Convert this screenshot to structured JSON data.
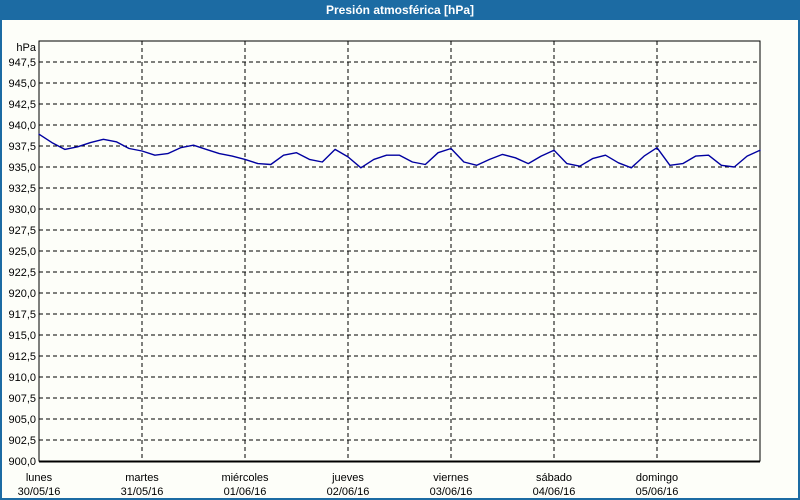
{
  "window": {
    "title": "Presión atmosférica [hPa]"
  },
  "colors": {
    "titlebar": "#1C6BA3",
    "border": "#1C6BA3",
    "background": "#FDFEF9",
    "grid": "#000000",
    "plot_border": "#000000",
    "axis_text": "#000000",
    "title_text": "#FFFFFF",
    "line": "#0000A0"
  },
  "chart_data": {
    "type": "line",
    "title": "Presión atmosférica [hPa]",
    "ylabel": "hPa",
    "xlabel": "",
    "ylim": [
      900,
      950
    ],
    "y_tick_step": 2.5,
    "grid": "dashed",
    "legend": "none",
    "x_range_days": 7,
    "interval_hours": 3,
    "y_ticks": [
      {
        "value": 947.5,
        "label": "947,5"
      },
      {
        "value": 945.0,
        "label": "945,0"
      },
      {
        "value": 942.5,
        "label": "942,5"
      },
      {
        "value": 940.0,
        "label": "940,0"
      },
      {
        "value": 937.5,
        "label": "937,5"
      },
      {
        "value": 935.0,
        "label": "935,0"
      },
      {
        "value": 932.5,
        "label": "932,5"
      },
      {
        "value": 930.0,
        "label": "930,0"
      },
      {
        "value": 927.5,
        "label": "927,5"
      },
      {
        "value": 925.0,
        "label": "925,0"
      },
      {
        "value": 922.5,
        "label": "922,5"
      },
      {
        "value": 920.0,
        "label": "920,0"
      },
      {
        "value": 917.5,
        "label": "917,5"
      },
      {
        "value": 915.0,
        "label": "915,0"
      },
      {
        "value": 912.5,
        "label": "912,5"
      },
      {
        "value": 910.0,
        "label": "910,0"
      },
      {
        "value": 907.5,
        "label": "907,5"
      },
      {
        "value": 905.0,
        "label": "905,0"
      },
      {
        "value": 902.5,
        "label": "902,5"
      },
      {
        "value": 900.0,
        "label": "900,0"
      }
    ],
    "x_categories": [
      {
        "day": "lunes",
        "date": "30/05/16"
      },
      {
        "day": "martes",
        "date": "31/05/16"
      },
      {
        "day": "miércoles",
        "date": "01/06/16"
      },
      {
        "day": "jueves",
        "date": "02/06/16"
      },
      {
        "day": "viernes",
        "date": "03/06/16"
      },
      {
        "day": "sábado",
        "date": "04/06/16"
      },
      {
        "day": "domingo",
        "date": "05/06/16"
      }
    ],
    "series": [
      {
        "name": "Presión atmosférica",
        "color": "#0000A0",
        "values": [
          938.9,
          937.9,
          937.1,
          937.4,
          937.9,
          938.3,
          938.0,
          937.2,
          936.9,
          936.4,
          936.6,
          937.3,
          937.6,
          937.1,
          936.6,
          936.3,
          935.9,
          935.4,
          935.3,
          936.4,
          936.7,
          935.9,
          935.6,
          937.1,
          936.2,
          934.9,
          935.9,
          936.4,
          936.4,
          935.6,
          935.3,
          936.7,
          937.2,
          935.6,
          935.2,
          935.9,
          936.5,
          936.1,
          935.4,
          936.3,
          937.0,
          935.4,
          935.1,
          936.0,
          936.4,
          935.5,
          934.9,
          936.3,
          937.3,
          935.2,
          935.4,
          936.3,
          936.4,
          935.2,
          935.0,
          936.3,
          937.0
        ]
      }
    ]
  }
}
